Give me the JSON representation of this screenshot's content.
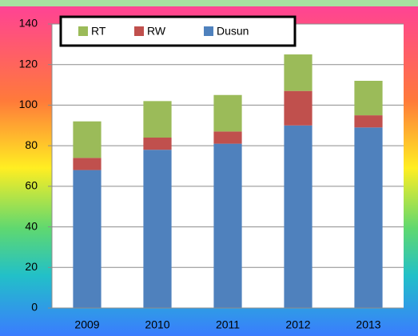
{
  "chart_data": {
    "type": "stacked_bar",
    "categories": [
      "2009",
      "2010",
      "2011",
      "2012",
      "2013"
    ],
    "series": [
      {
        "name": "Dusun",
        "color": "#4f81bd",
        "values": [
          68,
          78,
          81,
          90,
          89
        ]
      },
      {
        "name": "RW",
        "color": "#c0504d",
        "values": [
          6,
          6,
          6,
          17,
          6
        ]
      },
      {
        "name": "RT",
        "color": "#9bbb59",
        "values": [
          18,
          18,
          18,
          18,
          17
        ]
      }
    ],
    "ylim": [
      0,
      140
    ],
    "yticks": [
      0,
      20,
      40,
      60,
      80,
      100,
      120,
      140
    ],
    "grid": true,
    "legend": "top-left"
  }
}
